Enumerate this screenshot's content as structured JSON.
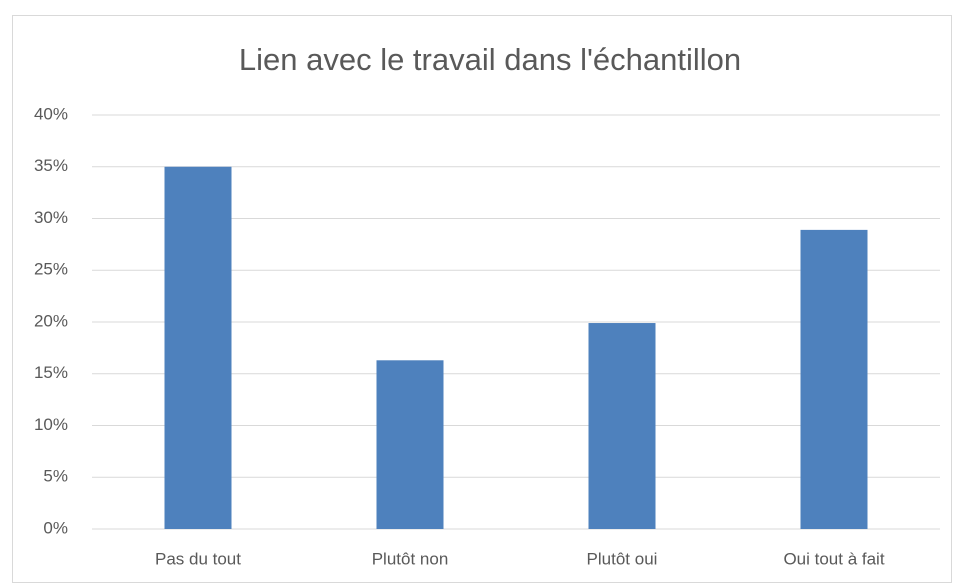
{
  "chart_data": {
    "type": "bar",
    "title": "Lien avec le travail dans l'échantillon",
    "categories": [
      "Pas du tout",
      "Plutôt non",
      "Plutôt oui",
      "Oui tout à fait"
    ],
    "values": [
      35,
      16.3,
      19.9,
      28.9
    ],
    "color": "#4e81bd",
    "ylim": [
      0,
      40
    ],
    "yticks": [
      {
        "value": 0,
        "label": "0%"
      },
      {
        "value": 5,
        "label": "5%"
      },
      {
        "value": 10,
        "label": "10%"
      },
      {
        "value": 15,
        "label": "15%"
      },
      {
        "value": 20,
        "label": "20%"
      },
      {
        "value": 25,
        "label": "25%"
      },
      {
        "value": 30,
        "label": "30%"
      },
      {
        "value": 35,
        "label": "35%"
      },
      {
        "value": 40,
        "label": "40%"
      }
    ],
    "grid": true
  }
}
